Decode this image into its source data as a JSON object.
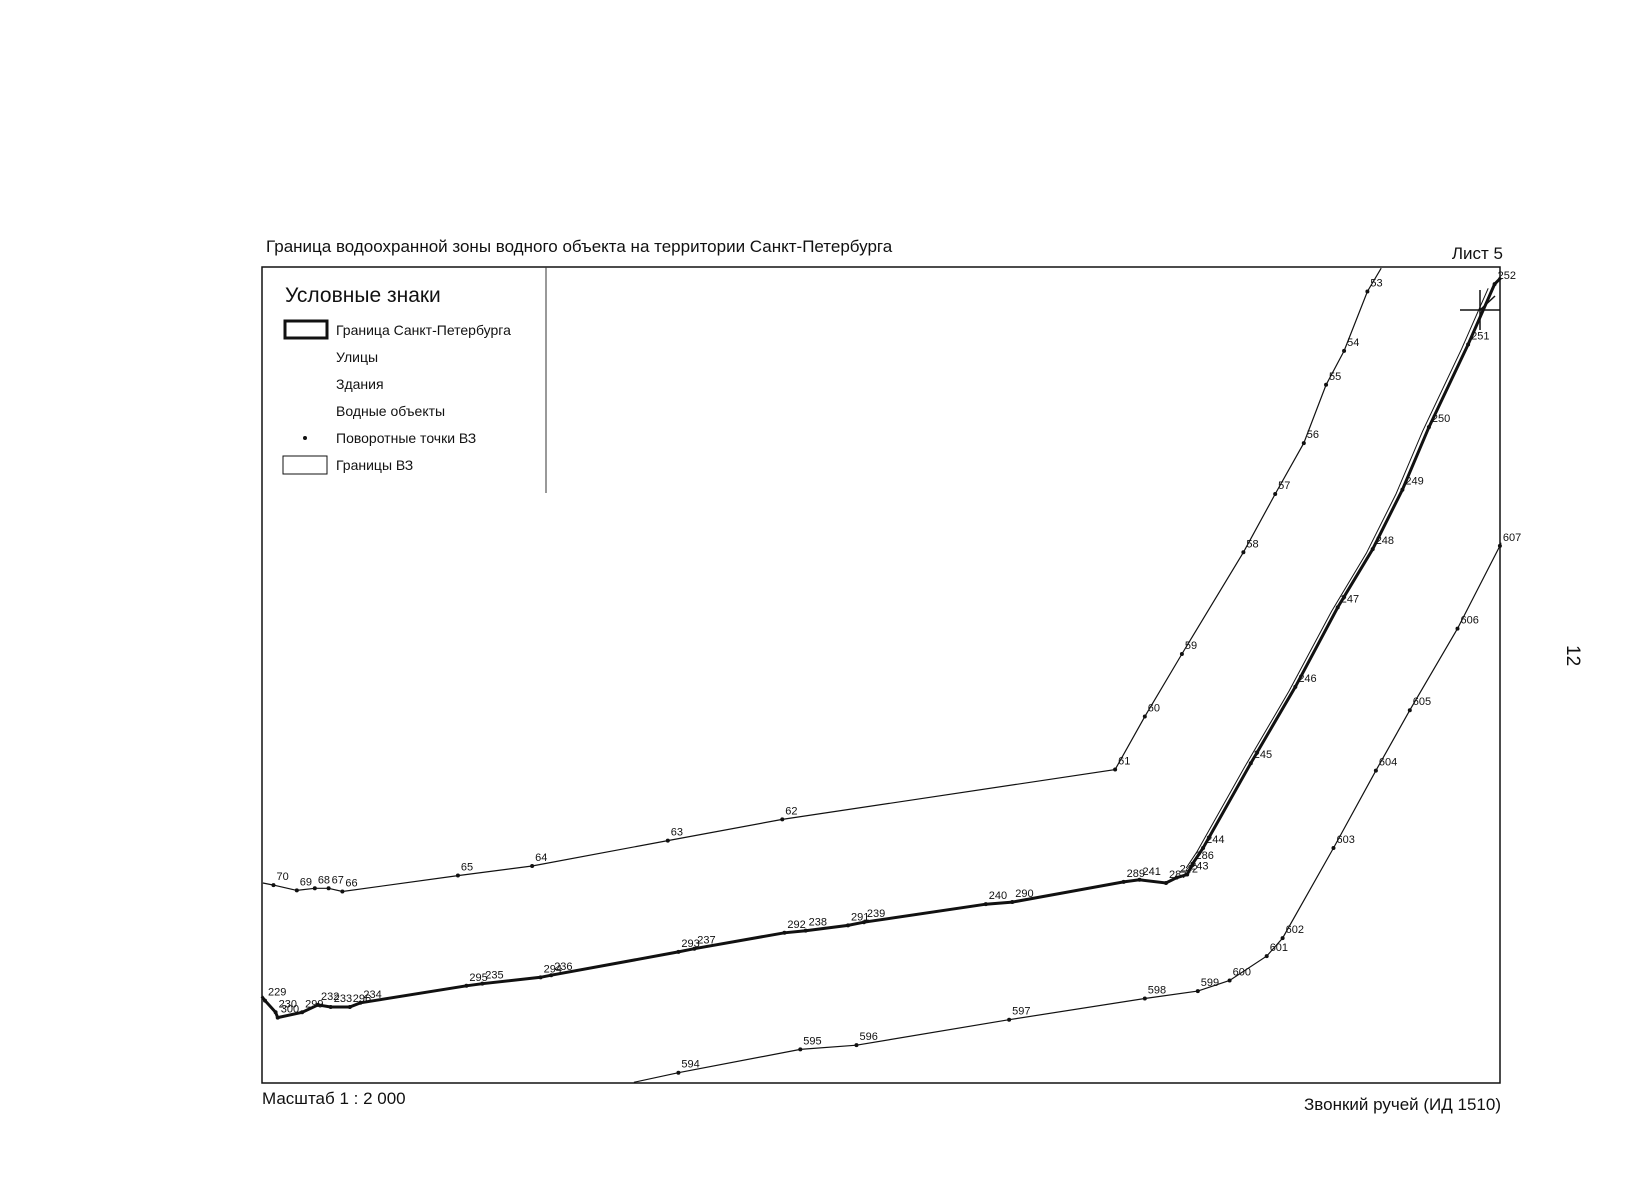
{
  "header": {
    "title": "Граница водоохранной зоны водного объекта на территории Санкт-Петербурга",
    "sheet": "Лист 5"
  },
  "legend": {
    "title": "Условные знаки",
    "items": [
      "Граница Санкт-Петербурга",
      "Улицы",
      "Здания",
      "Водные объекты",
      "Поворотные точки ВЗ",
      "Границы ВЗ"
    ]
  },
  "points": {
    "north": [
      "70",
      "69",
      "68",
      "67",
      "66",
      "65",
      "64",
      "63",
      "62",
      "61",
      "60",
      "59",
      "58",
      "57",
      "56",
      "55",
      "54",
      "53"
    ],
    "middle": [
      "229",
      "230",
      "300",
      "299",
      "232",
      "233",
      "296",
      "234",
      "295",
      "235",
      "294",
      "236",
      "293",
      "237",
      "292",
      "238",
      "291",
      "239",
      "240",
      "290",
      "289",
      "241",
      "287",
      "242",
      "243",
      "286",
      "244",
      "245",
      "246",
      "247",
      "248",
      "249",
      "250",
      "251",
      "252"
    ],
    "south": [
      "594",
      "595",
      "596",
      "597",
      "598",
      "599",
      "600",
      "601",
      "602",
      "603",
      "604",
      "605",
      "606",
      "607"
    ]
  },
  "footer": {
    "scale": "Масштаб 1 : 2 000",
    "name": "Звонкий ручей (ИД 1510)"
  },
  "page_number": "12"
}
